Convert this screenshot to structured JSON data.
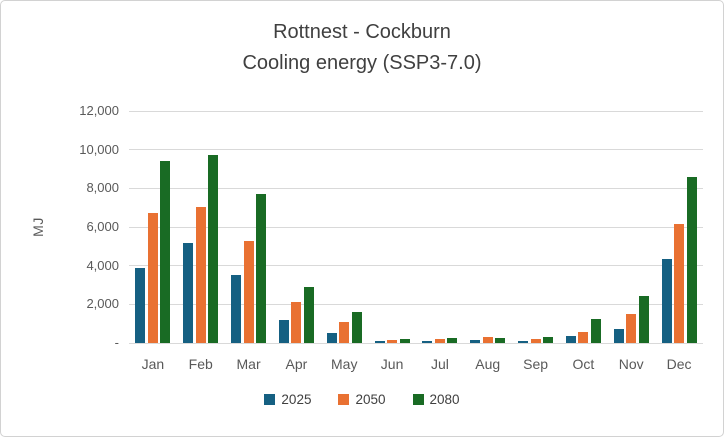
{
  "chart_data": {
    "type": "bar",
    "title": "Rottnest - Cockburn\nCooling energy (SSP3-7.0)",
    "title_lines": [
      "Rottnest - Cockburn",
      "Cooling energy (SSP3-7.0)"
    ],
    "ylabel": "MJ",
    "xlabel": "",
    "ylim": [
      0,
      12000
    ],
    "ytick_interval": 2000,
    "ytick_labels_bottom_to_top": [
      "-",
      "2,000",
      "4,000",
      "6,000",
      "8,000",
      "10,000",
      "12,000"
    ],
    "grid": true,
    "legend_position": "bottom",
    "categories": [
      "Jan",
      "Feb",
      "Mar",
      "Apr",
      "May",
      "Jun",
      "Jul",
      "Aug",
      "Sep",
      "Oct",
      "Nov",
      "Dec"
    ],
    "series": [
      {
        "name": "2025",
        "color": "#156082",
        "values": [
          3900,
          5150,
          3500,
          1200,
          500,
          80,
          90,
          160,
          100,
          350,
          750,
          4350
        ]
      },
      {
        "name": "2050",
        "color": "#E97132",
        "values": [
          6750,
          7050,
          5300,
          2100,
          1100,
          150,
          190,
          310,
          210,
          570,
          1500,
          6150
        ]
      },
      {
        "name": "2080",
        "color": "#196B24",
        "values": [
          9400,
          9700,
          7700,
          2900,
          1600,
          200,
          280,
          260,
          300,
          1250,
          2450,
          8600
        ]
      }
    ]
  }
}
